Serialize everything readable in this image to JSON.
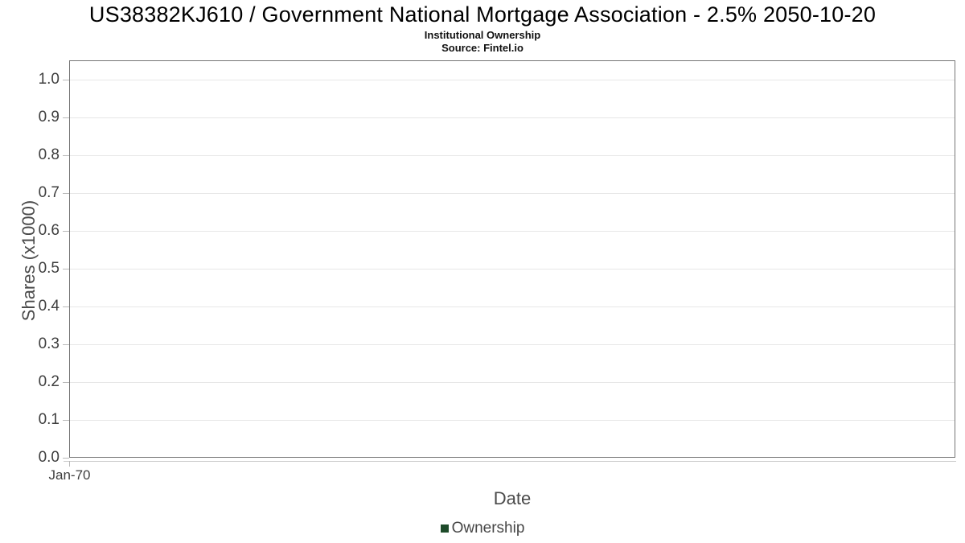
{
  "chart_data": {
    "type": "bar",
    "title": "US38382KJ610 / Government National Mortgage Association - 2.5% 2050-10-20",
    "subtitle": "Institutional Ownership",
    "source": "Source: Fintel.io",
    "xlabel": "Date",
    "ylabel": "Shares (x1000)",
    "x_ticks": [
      "Jan-70"
    ],
    "y_ticks": [
      "0.0",
      "0.1",
      "0.2",
      "0.3",
      "0.4",
      "0.5",
      "0.6",
      "0.7",
      "0.8",
      "0.9",
      "1.0"
    ],
    "ylim": [
      0,
      1.05
    ],
    "grid": "horizontal",
    "legend_position": "bottom-center",
    "legend": [
      {
        "label": "Ownership",
        "color": "#1e4b2a"
      }
    ],
    "series": [
      {
        "name": "Ownership",
        "x": [],
        "values": []
      }
    ]
  }
}
